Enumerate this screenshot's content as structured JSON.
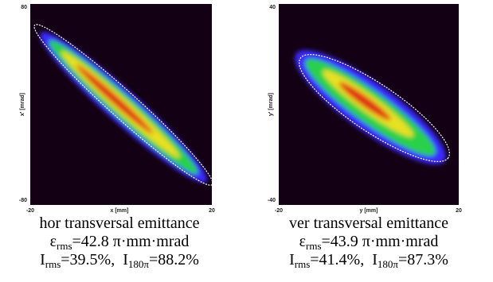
{
  "panels": [
    {
      "y_top": "80",
      "y_bottom": "-80",
      "x_left": "-20",
      "x_right": "20",
      "x_label": "x [mm]",
      "y_label": "x' [mrad]",
      "caption": {
        "title": "hor transversal emittance",
        "emittance": {
          "symbol": "ε",
          "sub": "rms",
          "text": "=42.8 π·mm·mrad"
        },
        "current": {
          "symbol": "I",
          "sub": "rms",
          "text": "=39.5%,  I",
          "sub2": "180π",
          "text2": "=88.2%"
        }
      }
    },
    {
      "y_top": "40",
      "y_bottom": "-40",
      "x_left": "-20",
      "x_right": "20",
      "x_label": "y [mm]",
      "y_label": "y' [mrad]",
      "caption": {
        "title": "ver transversal emittance",
        "emittance": {
          "symbol": "ε",
          "sub": "rms",
          "text": "=43.9 π·mm·mrad"
        },
        "current": {
          "symbol": "I",
          "sub": "rms",
          "text": "=41.4%,  I",
          "sub2": "180π",
          "text2": "=87.3%"
        }
      }
    }
  ]
}
